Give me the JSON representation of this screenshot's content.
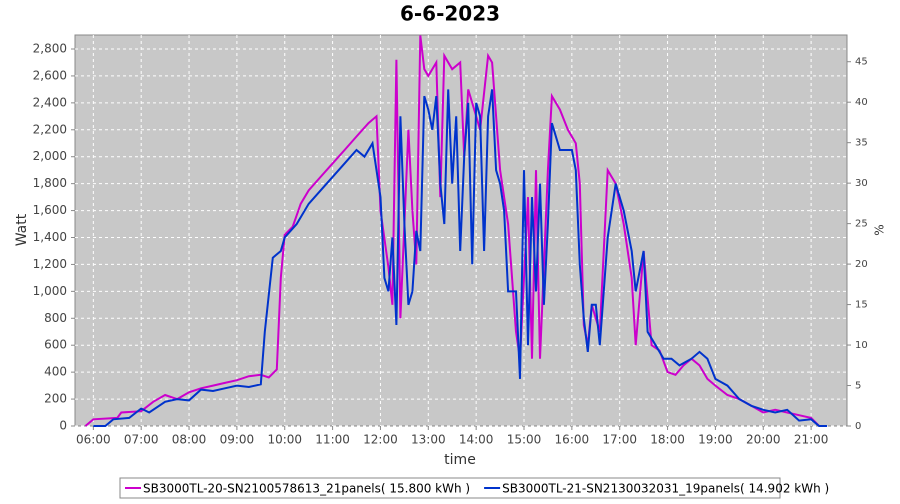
{
  "chart_data": {
    "type": "line",
    "title": "6-6-2023",
    "x_label": "time",
    "y_label": "Watt",
    "y2_label": "%",
    "xlim": [
      "05:37",
      "21:45"
    ],
    "xticks": [
      "06:00",
      "07:00",
      "08:00",
      "09:00",
      "10:00",
      "11:00",
      "12:00",
      "13:00",
      "14:00",
      "15:00",
      "16:00",
      "17:00",
      "18:00",
      "19:00",
      "20:00",
      "21:00"
    ],
    "ylim": [
      0,
      2904
    ],
    "yticks": [
      0,
      200,
      400,
      600,
      800,
      {
        "value": 1000,
        "label": "1,000"
      },
      {
        "value": 1200,
        "label": "1,200"
      },
      {
        "value": 1400,
        "label": "1,400"
      },
      {
        "value": 1600,
        "label": "1,600"
      },
      {
        "value": 1800,
        "label": "1,800"
      },
      {
        "value": 2000,
        "label": "2,000"
      },
      {
        "value": 2200,
        "label": "2,200"
      },
      {
        "value": 2400,
        "label": "2,400"
      },
      {
        "value": 2600,
        "label": "2,600"
      },
      {
        "value": 2800,
        "label": "2,800"
      }
    ],
    "y2lim": [
      0,
      48.3
    ],
    "y2ticks": [
      0,
      5,
      10,
      15,
      20,
      25,
      30,
      35,
      40,
      45
    ],
    "grid": true,
    "series": [
      {
        "name": "SB3000TL-20-SN2100578613_21panels( 15.800 kWh )",
        "color": "#cc00cc",
        "x": [
          "05:50",
          "06:00",
          "06:30",
          "06:35",
          "07:00",
          "07:15",
          "07:30",
          "07:45",
          "08:00",
          "08:15",
          "08:30",
          "08:45",
          "09:00",
          "09:15",
          "09:30",
          "09:40",
          "09:50",
          "09:55",
          "10:00",
          "10:10",
          "10:20",
          "10:30",
          "10:45",
          "11:00",
          "11:15",
          "11:30",
          "11:45",
          "11:55",
          "12:00",
          "12:10",
          "12:15",
          "12:20",
          "12:25",
          "12:30",
          "12:35",
          "12:40",
          "12:45",
          "12:50",
          "12:55",
          "13:00",
          "13:10",
          "13:15",
          "13:20",
          "13:30",
          "13:40",
          "13:45",
          "13:50",
          "14:00",
          "14:05",
          "14:15",
          "14:20",
          "14:30",
          "14:40",
          "14:50",
          "14:55",
          "15:05",
          "15:10",
          "15:15",
          "15:20",
          "15:30",
          "15:35",
          "15:45",
          "15:55",
          "16:05",
          "16:10",
          "16:15",
          "16:20",
          "16:25",
          "16:35",
          "16:45",
          "16:55",
          "17:05",
          "17:15",
          "17:20",
          "17:30",
          "17:40",
          "17:50",
          "18:00",
          "18:10",
          "18:20",
          "18:30",
          "18:40",
          "18:50",
          "19:00",
          "19:15",
          "19:30",
          "19:45",
          "20:00",
          "20:15",
          "20:30",
          "20:45",
          "21:00",
          "21:10"
        ],
        "values": [
          0,
          50,
          60,
          100,
          110,
          180,
          230,
          200,
          250,
          280,
          300,
          320,
          340,
          370,
          380,
          360,
          420,
          1100,
          1420,
          1480,
          1650,
          1750,
          1850,
          1950,
          2050,
          2150,
          2250,
          2300,
          1600,
          1180,
          900,
          2720,
          800,
          1500,
          2200,
          1600,
          1200,
          2900,
          2650,
          2600,
          2700,
          1700,
          2750,
          2650,
          2700,
          2000,
          2500,
          2300,
          2200,
          2750,
          2700,
          1900,
          1500,
          700,
          500,
          1700,
          500,
          1900,
          500,
          1900,
          2450,
          2350,
          2200,
          2100,
          1800,
          750,
          600,
          900,
          700,
          1900,
          1800,
          1500,
          1100,
          600,
          1300,
          600,
          560,
          400,
          380,
          450,
          500,
          450,
          350,
          300,
          230,
          200,
          150,
          100,
          120,
          100,
          80,
          60,
          0
        ]
      },
      {
        "name": "SB3000TL-21-SN2130032031_19panels( 14.902 kWh )",
        "color": "#0033cc",
        "x": [
          "06:00",
          "06:15",
          "06:25",
          "06:45",
          "07:00",
          "07:10",
          "07:30",
          "07:45",
          "08:00",
          "08:15",
          "08:30",
          "08:45",
          "09:00",
          "09:15",
          "09:30",
          "09:35",
          "09:45",
          "09:55",
          "10:00",
          "10:15",
          "10:30",
          "10:45",
          "11:00",
          "11:15",
          "11:30",
          "11:40",
          "11:50",
          "12:00",
          "12:05",
          "12:10",
          "12:15",
          "12:20",
          "12:25",
          "12:30",
          "12:35",
          "12:40",
          "12:45",
          "12:50",
          "12:55",
          "13:00",
          "13:05",
          "13:10",
          "13:15",
          "13:20",
          "13:25",
          "13:30",
          "13:35",
          "13:40",
          "13:45",
          "13:50",
          "13:55",
          "14:00",
          "14:05",
          "14:10",
          "14:15",
          "14:20",
          "14:25",
          "14:30",
          "14:35",
          "14:40",
          "14:50",
          "14:55",
          "15:00",
          "15:05",
          "15:10",
          "15:15",
          "15:20",
          "15:25",
          "15:30",
          "15:35",
          "15:45",
          "16:00",
          "16:05",
          "16:10",
          "16:15",
          "16:20",
          "16:25",
          "16:30",
          "16:35",
          "16:45",
          "16:55",
          "17:05",
          "17:15",
          "17:20",
          "17:30",
          "17:35",
          "17:45",
          "17:55",
          "18:05",
          "18:15",
          "18:30",
          "18:40",
          "18:50",
          "19:00",
          "19:15",
          "19:30",
          "19:45",
          "20:00",
          "20:15",
          "20:30",
          "20:45",
          "21:00",
          "21:10",
          "21:20"
        ],
        "values": [
          0,
          0,
          50,
          60,
          130,
          100,
          180,
          200,
          190,
          270,
          260,
          280,
          300,
          290,
          310,
          700,
          1250,
          1300,
          1400,
          1500,
          1650,
          1750,
          1850,
          1950,
          2050,
          2000,
          2100,
          1700,
          1100,
          1000,
          1400,
          750,
          2300,
          1500,
          900,
          1000,
          1450,
          1300,
          2450,
          2350,
          2200,
          2450,
          1800,
          1500,
          2500,
          1800,
          2300,
          1300,
          2000,
          2400,
          1200,
          2400,
          2300,
          1300,
          2300,
          2500,
          1900,
          1800,
          1600,
          1000,
          1000,
          350,
          1900,
          600,
          1700,
          1000,
          1800,
          900,
          1500,
          2250,
          2050,
          2050,
          1900,
          1200,
          800,
          550,
          900,
          900,
          600,
          1400,
          1800,
          1600,
          1300,
          1000,
          1300,
          700,
          600,
          500,
          500,
          450,
          500,
          550,
          500,
          350,
          300,
          200,
          150,
          120,
          100,
          120,
          40,
          50,
          0,
          0
        ]
      }
    ]
  }
}
